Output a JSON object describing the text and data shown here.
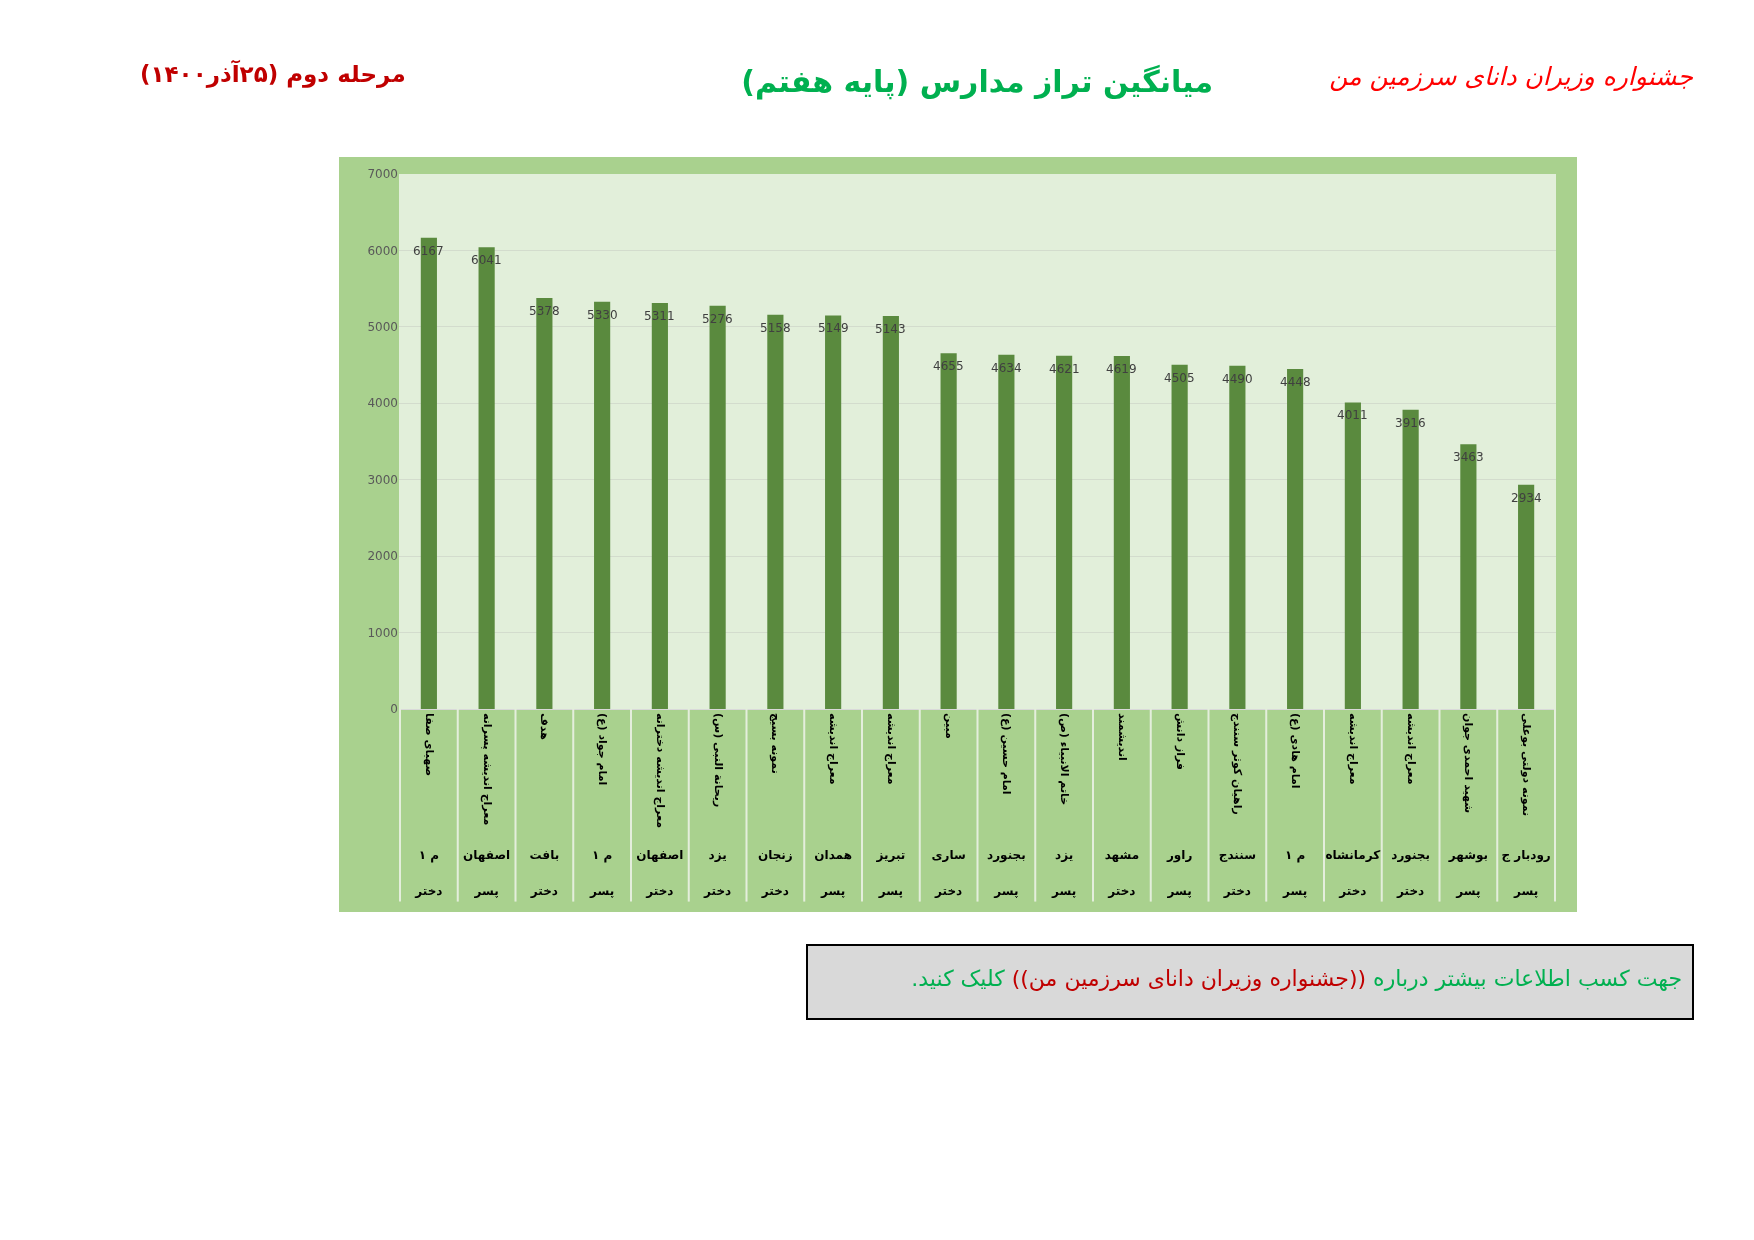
{
  "chart_data": {
    "type": "bar",
    "title": "میانگین تراز مدارس (پایه هفتم)",
    "annotations": [
      "جشنواره وزیران دانای سرزمین من",
      "مرحله دوم (۲۵آذر۱۴۰۰)",
      "جهت کسب اطلاعات بیشتر درباره ((جشنواره وزیران دانای سرزمین من)) کلیک کنید."
    ],
    "categories": [
      "صهبای صفا\nم ۱\nدختر",
      "معراج اندیشه پسرانه\nاصفهان\nپسر",
      "هدف\nبافت\nدختر",
      "امام جواد (ع)\nم ۱\nپسر",
      "معراج اندیشه دخترانه\nاصفهان\nدختر",
      "ریحانة النبی (س)\nیزد\nدختر",
      "نمونه بسیج\nزنجان\nدختر",
      "معراج اندیشه\nهمدان\nپسر",
      "معراج اندیشه\nتبریز\nپسر",
      "مبین\nساری\nدختر",
      "امام حسین (ع)\nبجنورد\nپسر",
      "خاتم الانبیاء (ص)\nیزد\nپسر",
      "اندیشمند\nمشهد\nدختر",
      "فراز دانش\nراور\nپسر",
      "راهیان کوثر سنندج\nسنندج\nدختر",
      "امام هادی (ع)\nم ۱\nپسر",
      "معراج اندیشه\nکرمانشاه\nدختر",
      "معراج اندیشه\nبجنورد\nدختر",
      "شهید احمدی جوان\nبوشهر\nپسر",
      "نمونه دولتی بوعلی\nرودبار ج\nپسر"
    ],
    "values": [
      6167,
      6041,
      5378,
      5330,
      5311,
      5276,
      5158,
      5149,
      5143,
      4655,
      4634,
      4621,
      4619,
      4505,
      4490,
      4448,
      4011,
      3916,
      3463,
      2934
    ],
    "color": "#5a8a3e",
    "ylim": [
      0,
      7000
    ],
    "yticks": [
      0,
      1000,
      2000,
      3000,
      4000,
      5000,
      6000,
      7000
    ],
    "grid": "y",
    "data_labels": true
  }
}
